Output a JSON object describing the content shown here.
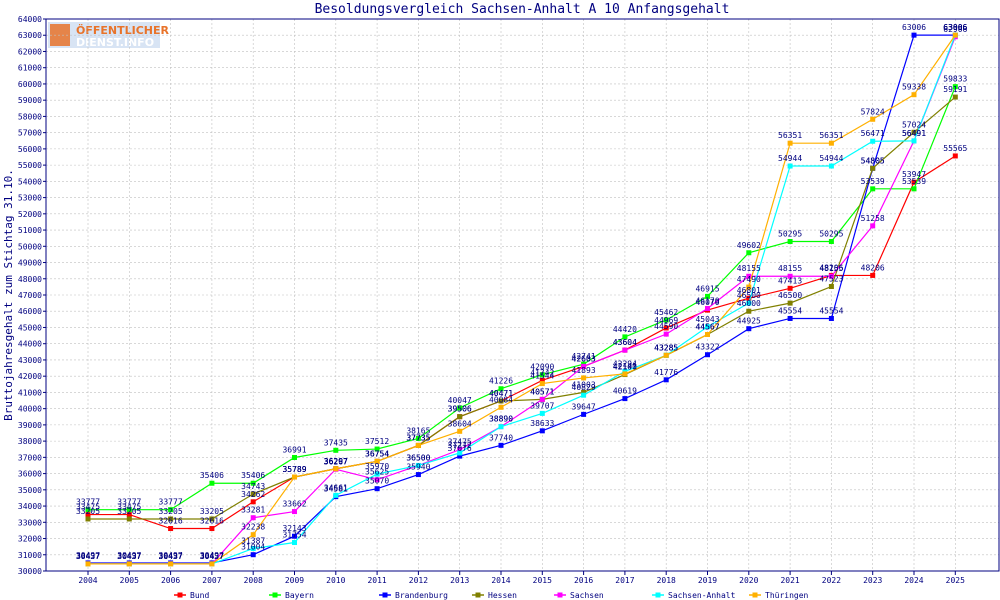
{
  "logo": {
    "line1": "ÖFFENTLICHER",
    "line2": "DIENST.INFO"
  },
  "chart_data": {
    "type": "line",
    "title": "Besoldungsvergleich Sachsen-Anhalt A 10 Anfangsgehalt",
    "xlabel": "",
    "ylabel": "Bruttojahresgehalt zum Stichtag 31.10.",
    "ylim": [
      30000,
      64000
    ],
    "ytick_step": 1000,
    "grid": true,
    "legend_position": "bottom",
    "x": [
      "2004",
      "2005",
      "2006",
      "2007",
      "2008",
      "2009",
      "2010",
      "2011",
      "2012",
      "2013",
      "2014",
      "2015",
      "2016",
      "2017",
      "2018",
      "2019",
      "2020",
      "2021",
      "2022",
      "2023",
      "2024",
      "2025"
    ],
    "series": [
      {
        "name": "Bund",
        "color": "#ff0000",
        "values": [
          33475,
          33475,
          32616,
          32616,
          34262,
          35789,
          36297,
          36754,
          37735,
          39506,
          40471,
          41742,
          42603,
          43604,
          44969,
          46070,
          46801,
          47413,
          48206,
          48206,
          53947,
          55565
        ]
      },
      {
        "name": "Bayern",
        "color": "#00ff00",
        "values": [
          33777,
          33777,
          33777,
          35406,
          35406,
          36991,
          37435,
          37512,
          38165,
          40047,
          41226,
          42090,
          42741,
          44420,
          45462,
          46915,
          49602,
          50295,
          50295,
          53539,
          53539,
          59833
        ]
      },
      {
        "name": "Brandenburg",
        "color": "#0000ff",
        "values": [
          30497,
          30497,
          30497,
          30497,
          31004,
          32143,
          34581,
          35070,
          35940,
          37076,
          37740,
          38633,
          39647,
          40619,
          41776,
          43322,
          44925,
          45554,
          45554,
          54805,
          63006,
          63006
        ]
      },
      {
        "name": "Hessen",
        "color": "#808000",
        "values": [
          33205,
          33205,
          33205,
          33205,
          34743,
          35789,
          36297,
          36754,
          37735,
          39506,
          40471,
          40571,
          41003,
          42100,
          43285,
          44567,
          46000,
          46500,
          47523,
          54805,
          57024,
          59191
        ]
      },
      {
        "name": "Sachsen",
        "color": "#ff00ff",
        "values": [
          30437,
          30437,
          30437,
          30437,
          33281,
          33662,
          36267,
          35625,
          36500,
          37475,
          38890,
          40571,
          42603,
          43604,
          44590,
          46170,
          48155,
          48155,
          48155,
          51258,
          56491,
          62906
        ]
      },
      {
        "name": "Sachsen-Anhalt",
        "color": "#00ffff",
        "values": [
          30437,
          30437,
          30437,
          30437,
          31387,
          31754,
          34661,
          35970,
          36500,
          37272,
          38890,
          39707,
          40829,
          42294,
          43285,
          45043,
          46500,
          54944,
          54944,
          56471,
          56491,
          63006
        ]
      },
      {
        "name": "Thüringen",
        "color": "#ffb000",
        "values": [
          30437,
          30437,
          30437,
          30437,
          32238,
          35789,
          36297,
          36754,
          37735,
          38604,
          40084,
          41544,
          41893,
          42141,
          43285,
          44567,
          47490,
          56351,
          56351,
          57824,
          59338,
          63006
        ]
      }
    ]
  }
}
